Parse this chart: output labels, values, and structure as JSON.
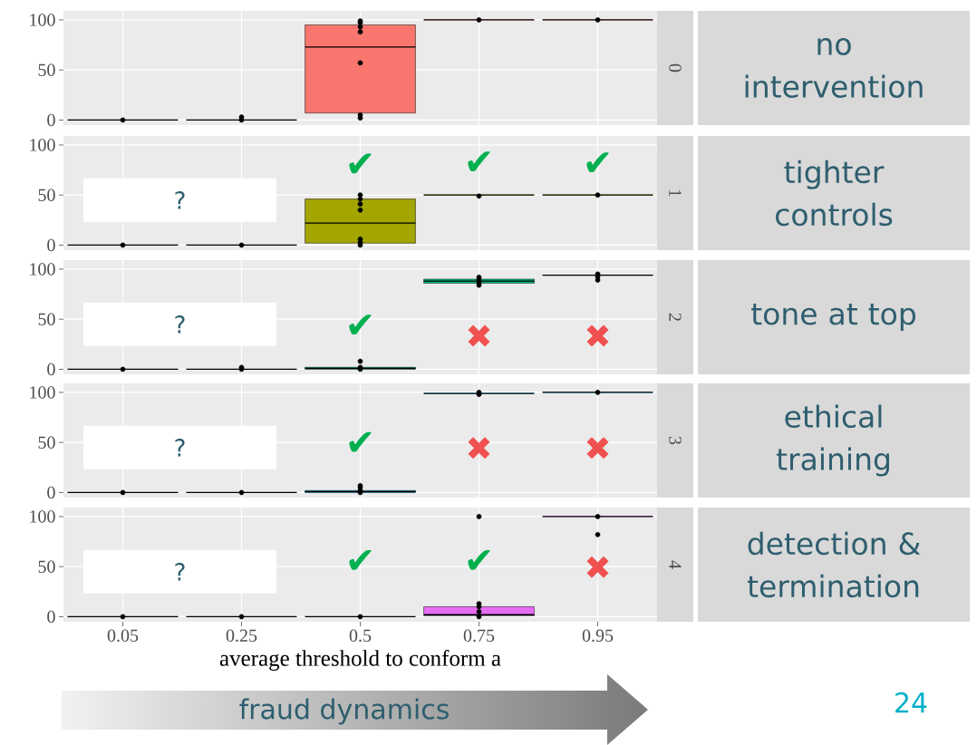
{
  "chart_data": [
    {
      "type": "box",
      "y2label": "0",
      "annotations": [
        "no intervention"
      ],
      "categories": [
        "0.05",
        "0.25",
        "0.5",
        "0.75",
        "0.95"
      ],
      "ylim": [
        -5,
        109
      ],
      "yticks": [
        0,
        50,
        100
      ],
      "grid": true,
      "tick_labels": "y",
      "series": [
        {
          "color": "#f8766d",
          "boxes": [
            {
              "low": 0,
              "q1": 0,
              "median": 0,
              "q3": 0,
              "high": 0
            },
            {
              "low": 0,
              "q1": 0,
              "median": 0,
              "q3": 0,
              "high": 0
            },
            {
              "low": 2,
              "q1": 7,
              "median": 73,
              "q3": 95,
              "high": 99
            },
            {
              "low": 100,
              "q1": 100,
              "median": 100,
              "q3": 100,
              "high": 100
            },
            {
              "low": 100,
              "q1": 100,
              "median": 100,
              "q3": 100,
              "high": 100
            }
          ]
        },
        {
          "type": "scatter",
          "color": "#000000",
          "marker": "circle",
          "x": [
            "0.05",
            "0.25",
            "0.25",
            "0.5",
            "0.5",
            "0.5",
            "0.5",
            "0.5",
            "0.5",
            "0.5",
            "0.75",
            "0.95"
          ],
          "values": [
            0,
            0,
            3,
            2,
            5,
            57,
            88,
            93,
            97,
            99,
            100,
            100
          ]
        }
      ]
    },
    {
      "type": "box",
      "y2label": "1",
      "categories": [
        "0.05",
        "0.25",
        "0.5",
        "0.75",
        "0.95"
      ],
      "ylim": [
        -5,
        109
      ],
      "yticks": [
        0,
        50,
        100
      ],
      "grid": true,
      "tick_labels": "y",
      "series": [
        {
          "color": "#a3a500",
          "boxes": [
            {
              "low": 0,
              "q1": 0,
              "median": 0,
              "q3": 0,
              "high": 0
            },
            {
              "low": 0,
              "q1": 0,
              "median": 0,
              "q3": 0,
              "high": 0
            },
            {
              "low": 0,
              "q1": 2,
              "median": 22,
              "q3": 46,
              "high": 50
            },
            {
              "low": 50,
              "q1": 50,
              "median": 50,
              "q3": 50,
              "high": 50
            },
            {
              "low": 50,
              "q1": 50,
              "median": 50,
              "q3": 50,
              "high": 50
            }
          ]
        },
        {
          "type": "scatter",
          "color": "#000000",
          "marker": "circle",
          "x": [
            "0.05",
            "0.25",
            "0.5",
            "0.5",
            "0.5",
            "0.5",
            "0.5",
            "0.5",
            "0.5",
            "0.75",
            "0.95"
          ],
          "values": [
            0,
            0,
            0,
            3,
            6,
            35,
            41,
            46,
            50,
            49,
            50
          ]
        }
      ],
      "annotations": [
        "?",
        "✔",
        "✔",
        "✔",
        "tighter controls"
      ]
    },
    {
      "type": "box",
      "y2label": "2",
      "categories": [
        "0.05",
        "0.25",
        "0.5",
        "0.75",
        "0.95"
      ],
      "ylim": [
        -5,
        109
      ],
      "yticks": [
        0,
        50,
        100
      ],
      "grid": true,
      "tick_labels": "y",
      "series": [
        {
          "color": "#00bf7d",
          "boxes": [
            {
              "low": 0,
              "q1": 0,
              "median": 0,
              "q3": 0,
              "high": 0
            },
            {
              "low": 0,
              "q1": 0,
              "median": 0,
              "q3": 0,
              "high": 0
            },
            {
              "low": 0,
              "q1": 0,
              "median": 1,
              "q3": 2,
              "high": 2
            },
            {
              "low": 84,
              "q1": 86,
              "median": 88,
              "q3": 90,
              "high": 92
            },
            {
              "low": 94,
              "q1": 94,
              "median": 94,
              "q3": 94,
              "high": 94
            }
          ]
        },
        {
          "type": "scatter",
          "color": "#000000",
          "marker": "circle",
          "x": [
            "0.05",
            "0.25",
            "0.25",
            "0.5",
            "0.5",
            "0.5",
            "0.75",
            "0.75",
            "0.75",
            "0.75",
            "0.95",
            "0.95",
            "0.95"
          ],
          "values": [
            0,
            0,
            2,
            0,
            2,
            8,
            84,
            87,
            90,
            92,
            89,
            92,
            95
          ]
        }
      ],
      "annotations": [
        "?",
        "✔",
        "✖",
        "✖",
        "tone at top"
      ]
    },
    {
      "type": "box",
      "y2label": "3",
      "categories": [
        "0.05",
        "0.25",
        "0.5",
        "0.75",
        "0.95"
      ],
      "ylim": [
        -5,
        109
      ],
      "yticks": [
        0,
        50,
        100
      ],
      "grid": true,
      "tick_labels": "y",
      "series": [
        {
          "color": "#00b0f6",
          "boxes": [
            {
              "low": 0,
              "q1": 0,
              "median": 0,
              "q3": 0,
              "high": 0
            },
            {
              "low": 0,
              "q1": 0,
              "median": 0,
              "q3": 0,
              "high": 0
            },
            {
              "low": 0,
              "q1": 0,
              "median": 1,
              "q3": 2,
              "high": 3
            },
            {
              "low": 99,
              "q1": 99,
              "median": 99,
              "q3": 99,
              "high": 99
            },
            {
              "low": 100,
              "q1": 100,
              "median": 100,
              "q3": 100,
              "high": 100
            }
          ]
        },
        {
          "type": "scatter",
          "color": "#000000",
          "marker": "circle",
          "x": [
            "0.05",
            "0.25",
            "0.5",
            "0.5",
            "0.5",
            "0.5",
            "0.75",
            "0.75",
            "0.95"
          ],
          "values": [
            0,
            0,
            0,
            2,
            5,
            7,
            98,
            100,
            100
          ]
        }
      ],
      "annotations": [
        "?",
        "✔",
        "✖",
        "✖",
        "ethical training"
      ]
    },
    {
      "type": "box",
      "y2label": "4",
      "categories": [
        "0.05",
        "0.25",
        "0.5",
        "0.75",
        "0.95"
      ],
      "ylim": [
        -5,
        109
      ],
      "yticks": [
        0,
        50,
        100
      ],
      "grid": true,
      "xlabel": "average threshold to conform a",
      "series": [
        {
          "color": "#e76bf3",
          "boxes": [
            {
              "low": 0,
              "q1": 0,
              "median": 0,
              "q3": 0,
              "high": 0
            },
            {
              "low": 0,
              "q1": 0,
              "median": 0,
              "q3": 0,
              "high": 0
            },
            {
              "low": 0,
              "q1": 0,
              "median": 0,
              "q3": 0,
              "high": 0
            },
            {
              "low": 0,
              "q1": 1,
              "median": 2,
              "q3": 10,
              "high": 13
            },
            {
              "low": 100,
              "q1": 100,
              "median": 100,
              "q3": 100,
              "high": 100
            }
          ]
        },
        {
          "type": "scatter",
          "color": "#000000",
          "marker": "circle",
          "x": [
            "0.05",
            "0.25",
            "0.5",
            "0.75",
            "0.75",
            "0.75",
            "0.75",
            "0.75",
            "0.95",
            "0.95"
          ],
          "values": [
            0,
            0,
            0,
            0,
            5,
            10,
            13,
            100,
            82,
            100
          ]
        }
      ],
      "annotations": [
        "?",
        "✔",
        "✔",
        "✖",
        "detection & termination",
        "fraud dynamics",
        "24"
      ]
    }
  ]
}
